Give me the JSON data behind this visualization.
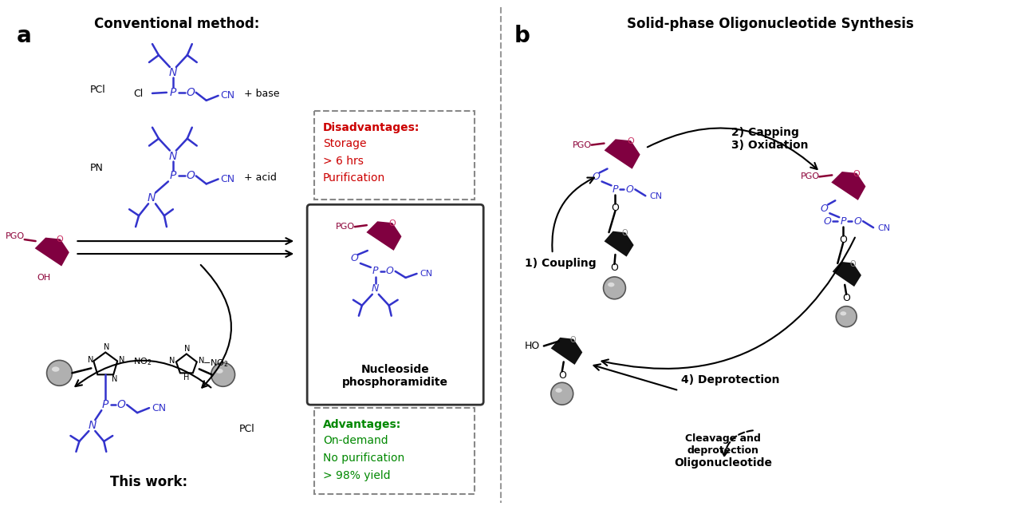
{
  "title_a": "Conventional method:",
  "title_b": "Solid-phase Oligonucleotide Synthesis",
  "label_a": "a",
  "label_b": "b",
  "label_this_work": "This work:",
  "disadvantages_title": "Disadvantages:",
  "disadvantages_items": [
    "Storage",
    "> 6 hrs",
    "Purification"
  ],
  "advantages_title": "Advantages:",
  "advantages_items": [
    "On-demand",
    "No purification",
    "> 98% yield"
  ],
  "nucleoside_label": "Nucleoside\nphosphoramidite",
  "coupling_label": "1) Coupling",
  "capping_oxidation_label": "2) Capping\n3) Oxidation",
  "deprotection_label": "4) Deprotection",
  "cleavage_label": "Cleavage and\ndeprotection",
  "oligonucleotide_label": "Oligonucleotide",
  "bg_color": "#ffffff",
  "text_color_black": "#000000",
  "text_color_blue": "#3333cc",
  "text_color_red": "#cc0000",
  "text_color_green": "#008800",
  "text_color_crimson": "#8b0037",
  "dashed_box_color": "#666666",
  "dpi": 100,
  "fig_width": 12.99,
  "fig_height": 6.39
}
